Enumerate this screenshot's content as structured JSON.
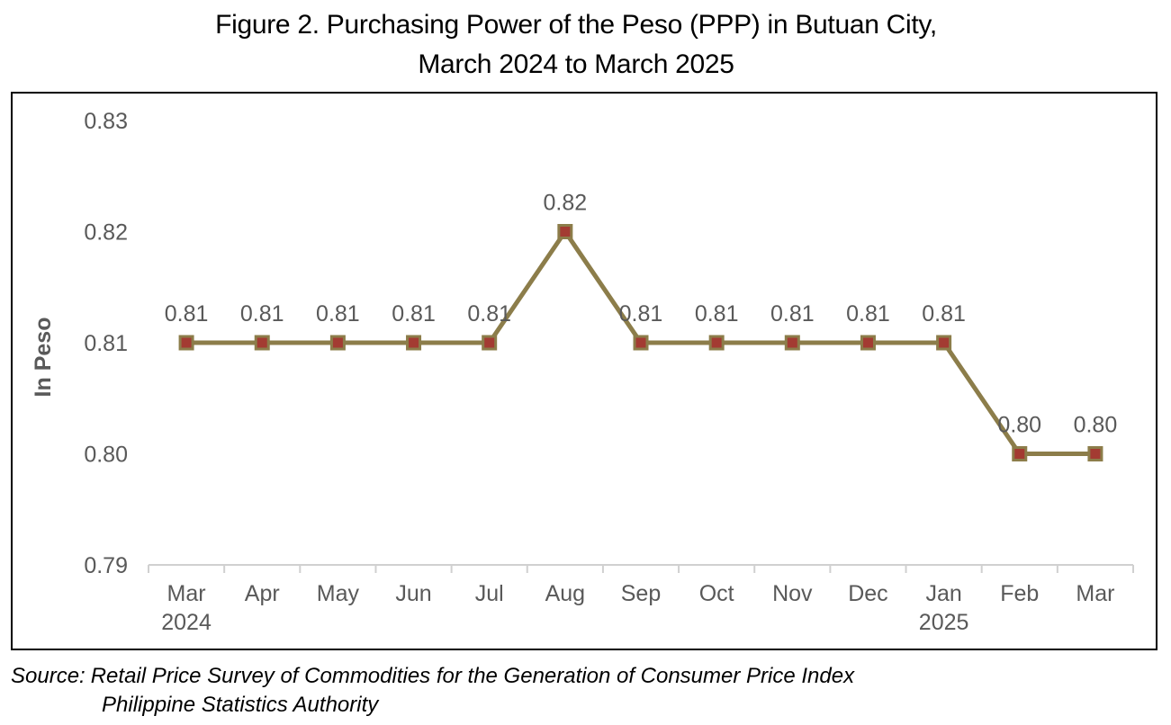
{
  "title_line1": "Figure 2. Purchasing Power of the Peso (PPP) in Butuan City,",
  "title_line2": "March 2024 to March 2025",
  "source": {
    "label": "Source:",
    "line1": "Retail Price Survey of Commodities for the Generation of Consumer Price Index",
    "line2": "Philippine Statistics Authority"
  },
  "chart_data": {
    "type": "line",
    "ylabel": "In Peso",
    "xlabel": "",
    "ylim": [
      0.79,
      0.83
    ],
    "yticks": [
      "0.79",
      "0.80",
      "0.81",
      "0.82",
      "0.83"
    ],
    "categories": [
      "Mar",
      "Apr",
      "May",
      "Jun",
      "Jul",
      "Aug",
      "Sep",
      "Oct",
      "Nov",
      "Dec",
      "Jan",
      "Feb",
      "Mar"
    ],
    "category_sublabels": [
      "2024",
      "",
      "",
      "",
      "",
      "",
      "",
      "",
      "",
      "",
      "2025",
      "",
      ""
    ],
    "series": [
      {
        "values": [
          0.81,
          0.81,
          0.81,
          0.81,
          0.81,
          0.82,
          0.81,
          0.81,
          0.81,
          0.81,
          0.81,
          0.8,
          0.8
        ],
        "labels": [
          "0.81",
          "0.81",
          "0.81",
          "0.81",
          "0.81",
          "0.82",
          "0.81",
          "0.81",
          "0.81",
          "0.81",
          "0.81",
          "0.80",
          "0.80"
        ],
        "line_color": "#8c7d4a",
        "marker_color": "#a33b32"
      }
    ],
    "grid": false,
    "legend": "none",
    "axis_text_color": "#595959"
  }
}
